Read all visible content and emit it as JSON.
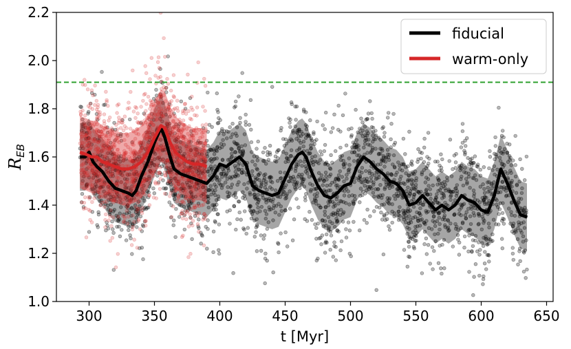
{
  "chart_data": {
    "type": "scatter",
    "xlabel": "t [Myr]",
    "ylabel": "R_EB",
    "xlim": [
      275,
      655
    ],
    "ylim": [
      1.0,
      2.2
    ],
    "xticks": [
      300,
      350,
      400,
      450,
      500,
      550,
      600,
      650
    ],
    "yticks": [
      1.0,
      1.2,
      1.4,
      1.6,
      1.8,
      2.0,
      2.2
    ],
    "legend_position": "top-right",
    "reference_line": {
      "y": 1.91,
      "color": "#2ca02c",
      "style": "dashed"
    },
    "series": [
      {
        "name": "fiducial",
        "color": "#000000",
        "x_range": [
          293,
          635
        ],
        "mean_x": [
          293,
          297,
          300,
          303,
          306,
          310,
          315,
          320,
          325,
          330,
          333,
          336,
          340,
          345,
          350,
          355,
          358,
          362,
          365,
          370,
          375,
          380,
          385,
          390,
          395,
          400,
          405,
          410,
          415,
          420,
          425,
          430,
          435,
          440,
          445,
          450,
          455,
          460,
          463,
          466,
          470,
          475,
          480,
          485,
          490,
          495,
          500,
          505,
          510,
          515,
          520,
          525,
          530,
          535,
          540,
          545,
          550,
          555,
          560,
          565,
          570,
          575,
          580,
          585,
          590,
          595,
          600,
          605,
          610,
          615,
          620,
          625,
          630,
          635
        ],
        "mean_y": [
          1.6,
          1.6,
          1.62,
          1.58,
          1.56,
          1.54,
          1.5,
          1.47,
          1.46,
          1.45,
          1.44,
          1.46,
          1.52,
          1.58,
          1.66,
          1.72,
          1.68,
          1.6,
          1.55,
          1.53,
          1.52,
          1.51,
          1.5,
          1.49,
          1.52,
          1.57,
          1.56,
          1.58,
          1.6,
          1.57,
          1.48,
          1.46,
          1.45,
          1.44,
          1.45,
          1.51,
          1.57,
          1.61,
          1.62,
          1.6,
          1.54,
          1.48,
          1.44,
          1.43,
          1.45,
          1.48,
          1.49,
          1.56,
          1.6,
          1.58,
          1.55,
          1.53,
          1.5,
          1.49,
          1.46,
          1.4,
          1.41,
          1.44,
          1.41,
          1.38,
          1.4,
          1.38,
          1.4,
          1.44,
          1.42,
          1.41,
          1.38,
          1.37,
          1.44,
          1.55,
          1.49,
          1.42,
          1.36,
          1.35
        ],
        "band_halfwidth": 0.14,
        "scatter_count": 2400,
        "scatter_spread": 0.12
      },
      {
        "name": "warm-only",
        "color": "#d62728",
        "x_range": [
          293,
          390
        ],
        "mean_x": [
          293,
          298,
          302,
          306,
          310,
          315,
          320,
          325,
          330,
          335,
          340,
          345,
          350,
          355,
          358,
          362,
          366,
          370,
          375,
          380,
          385,
          390
        ],
        "mean_y": [
          1.62,
          1.61,
          1.6,
          1.6,
          1.58,
          1.57,
          1.56,
          1.55,
          1.55,
          1.56,
          1.58,
          1.62,
          1.68,
          1.73,
          1.72,
          1.66,
          1.62,
          1.6,
          1.58,
          1.57,
          1.57,
          1.56
        ],
        "band_halfwidth": 0.15,
        "scatter_count": 1200,
        "scatter_spread": 0.13
      }
    ]
  }
}
